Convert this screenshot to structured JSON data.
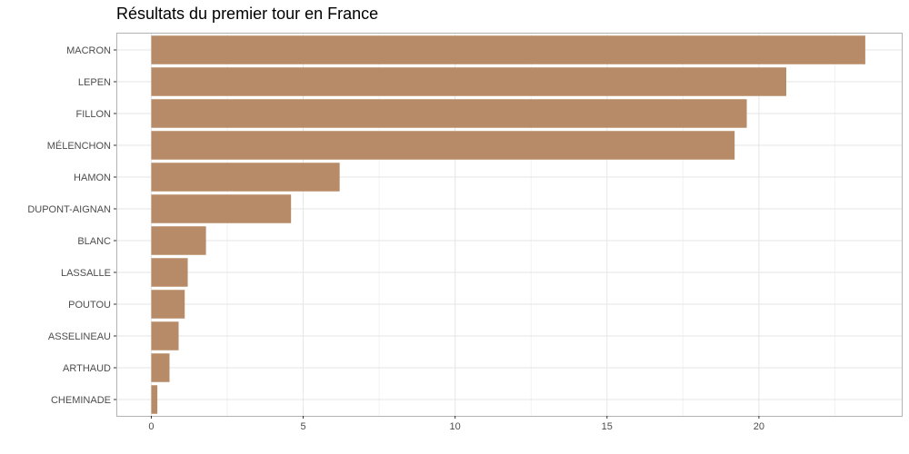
{
  "chart_data": {
    "type": "bar",
    "orientation": "horizontal",
    "title": "Résultats du premier tour en France",
    "xlabel": "",
    "ylabel": "",
    "categories": [
      "MACRON",
      "LEPEN",
      "FILLON",
      "MÉLENCHON",
      "HAMON",
      "DUPONT-AIGNAN",
      "BLANC",
      "LASSALLE",
      "POUTOU",
      "ASSELINEAU",
      "ARTHAUD",
      "CHEMINADE"
    ],
    "values": [
      23.5,
      20.9,
      19.6,
      19.2,
      6.2,
      4.6,
      1.8,
      1.2,
      1.1,
      0.9,
      0.6,
      0.2
    ],
    "xlim": [
      -1.15,
      24.7
    ],
    "xticks": [
      "0",
      "5",
      "10",
      "15",
      "20"
    ],
    "bar_color": "#b78b67",
    "grid": true
  }
}
